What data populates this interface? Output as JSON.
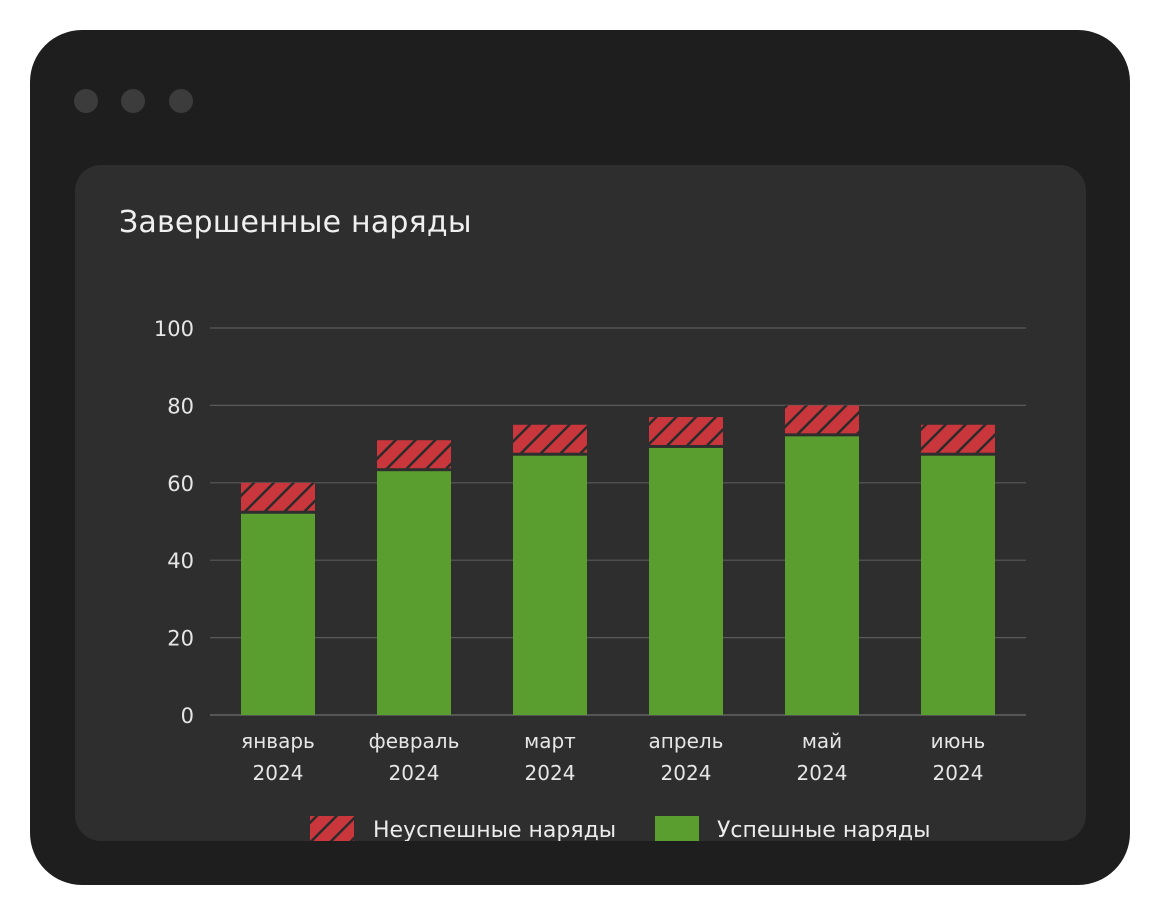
{
  "chart_data": {
    "type": "bar",
    "stacked": true,
    "title": "Завершенные наряды",
    "categories": [
      {
        "month": "январь",
        "year": "2024"
      },
      {
        "month": "февраль",
        "year": "2024"
      },
      {
        "month": "март",
        "year": "2024"
      },
      {
        "month": "апрель",
        "year": "2024"
      },
      {
        "month": "май",
        "year": "2024"
      },
      {
        "month": "июнь",
        "year": "2024"
      }
    ],
    "series": [
      {
        "name": "Успешные наряды",
        "color": "#5a9e2f",
        "values": [
          52,
          63,
          67,
          69,
          72,
          67
        ]
      },
      {
        "name": "Неуспешные наряды",
        "color": "#c9363c",
        "pattern": "hatched",
        "values": [
          8,
          8,
          8,
          8,
          8,
          8
        ]
      }
    ],
    "ylim": [
      0,
      100
    ],
    "yticks": [
      0,
      20,
      40,
      60,
      80,
      100
    ],
    "grid": true,
    "legend_position": "bottom",
    "legend_order": [
      "Неуспешные наряды",
      "Успешные наряды"
    ]
  }
}
